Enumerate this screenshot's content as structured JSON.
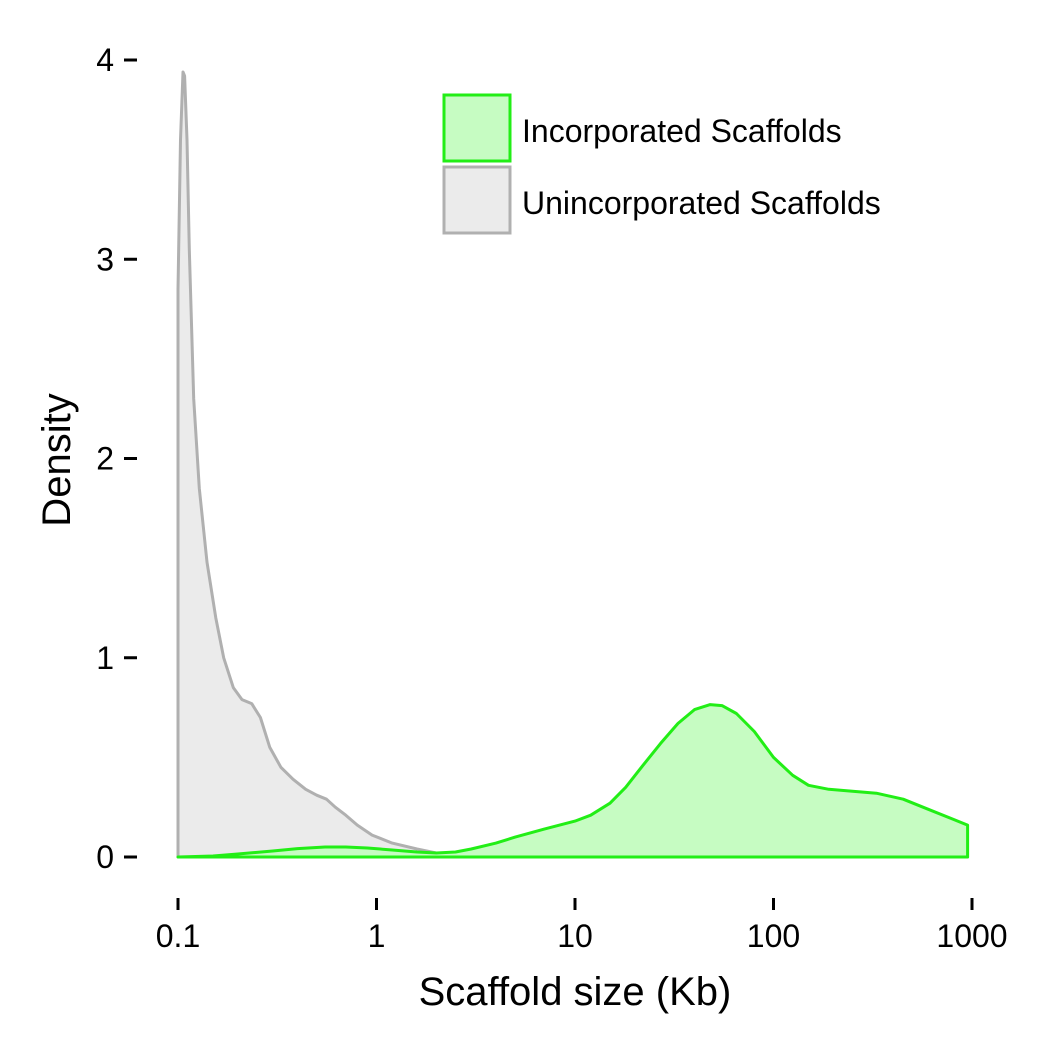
{
  "chart_data": {
    "type": "area",
    "xlabel": "Scaffold size (Kb)",
    "ylabel": "Density",
    "xscale": "log",
    "xlim": [
      0.1,
      1000
    ],
    "ylim": [
      0,
      4
    ],
    "x_ticks": [
      "0.1",
      "1",
      "10",
      "100",
      "1000"
    ],
    "y_ticks": [
      "0",
      "1",
      "2",
      "3",
      "4"
    ],
    "grid": false,
    "legend_position": "top-right",
    "series": [
      {
        "name": "Unincorporated Scaffolds",
        "fill": "#ebebeb",
        "stroke": "#b0b0b0",
        "points": [
          [
            0.1,
            0
          ],
          [
            0.1,
            2.85
          ],
          [
            0.103,
            3.6
          ],
          [
            0.106,
            3.94
          ],
          [
            0.108,
            3.92
          ],
          [
            0.111,
            3.6
          ],
          [
            0.114,
            3.05
          ],
          [
            0.12,
            2.3
          ],
          [
            0.128,
            1.85
          ],
          [
            0.14,
            1.48
          ],
          [
            0.155,
            1.2
          ],
          [
            0.17,
            1.0
          ],
          [
            0.19,
            0.85
          ],
          [
            0.21,
            0.79
          ],
          [
            0.235,
            0.77
          ],
          [
            0.26,
            0.7
          ],
          [
            0.29,
            0.55
          ],
          [
            0.33,
            0.45
          ],
          [
            0.38,
            0.39
          ],
          [
            0.44,
            0.34
          ],
          [
            0.5,
            0.31
          ],
          [
            0.56,
            0.29
          ],
          [
            0.62,
            0.25
          ],
          [
            0.7,
            0.21
          ],
          [
            0.8,
            0.16
          ],
          [
            0.95,
            0.11
          ],
          [
            1.2,
            0.07
          ],
          [
            1.6,
            0.04
          ],
          [
            2.0,
            0.02
          ],
          [
            3.0,
            0.01
          ],
          [
            5.0,
            0.005
          ],
          [
            10.0,
            0.01
          ],
          [
            20.0,
            0.003
          ],
          [
            50.0,
            0.002
          ],
          [
            100.0,
            0.001
          ],
          [
            500.0,
            0.001
          ],
          [
            950.0,
            0.0
          ],
          [
            950.0,
            0
          ]
        ]
      },
      {
        "name": "Incorporated Scaffolds",
        "fill": "#c6fcc2",
        "stroke": "#22ee16",
        "points": [
          [
            0.1,
            0
          ],
          [
            0.15,
            0.005
          ],
          [
            0.2,
            0.015
          ],
          [
            0.3,
            0.03
          ],
          [
            0.4,
            0.042
          ],
          [
            0.55,
            0.05
          ],
          [
            0.7,
            0.05
          ],
          [
            0.9,
            0.045
          ],
          [
            1.2,
            0.035
          ],
          [
            1.6,
            0.025
          ],
          [
            2.0,
            0.02
          ],
          [
            2.5,
            0.025
          ],
          [
            3.0,
            0.04
          ],
          [
            4.0,
            0.07
          ],
          [
            5.0,
            0.1
          ],
          [
            7.0,
            0.14
          ],
          [
            10.0,
            0.18
          ],
          [
            12.0,
            0.21
          ],
          [
            15.0,
            0.27
          ],
          [
            18.0,
            0.35
          ],
          [
            22.0,
            0.46
          ],
          [
            27.0,
            0.57
          ],
          [
            33.0,
            0.67
          ],
          [
            40.0,
            0.74
          ],
          [
            48.0,
            0.765
          ],
          [
            55.0,
            0.76
          ],
          [
            65.0,
            0.72
          ],
          [
            80.0,
            0.63
          ],
          [
            100.0,
            0.5
          ],
          [
            125.0,
            0.41
          ],
          [
            150.0,
            0.36
          ],
          [
            190.0,
            0.34
          ],
          [
            250.0,
            0.33
          ],
          [
            330.0,
            0.32
          ],
          [
            450.0,
            0.29
          ],
          [
            600.0,
            0.24
          ],
          [
            800.0,
            0.19
          ],
          [
            950.0,
            0.16
          ],
          [
            950.0,
            0
          ]
        ]
      }
    ],
    "legend": [
      {
        "label": "Incorporated Scaffolds",
        "fill": "#c6fcc2",
        "stroke": "#22ee16"
      },
      {
        "label": "Unincorporated Scaffolds",
        "fill": "#ebebeb",
        "stroke": "#b0b0b0"
      }
    ]
  }
}
